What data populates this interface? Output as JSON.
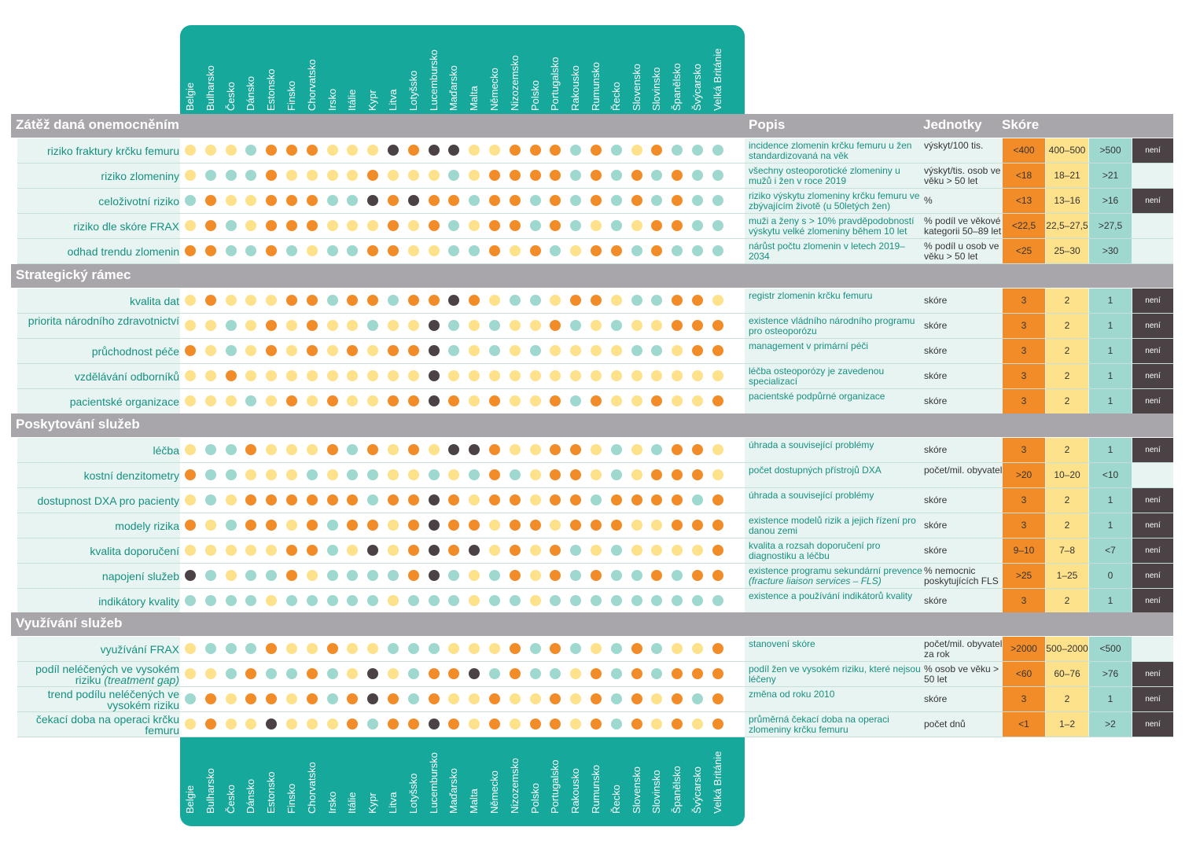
{
  "countries": [
    "Belgie",
    "Bulharsko",
    "Česko",
    "Dánsko",
    "Estonsko",
    "Finsko",
    "Chorvatsko",
    "Irsko",
    "Itálie",
    "Kypr",
    "Litva",
    "Lotyšsko",
    "Lucembursko",
    "Maďarsko",
    "Malta",
    "Německo",
    "Nizozemsko",
    "Polsko",
    "Portugalsko",
    "Rakousko",
    "Rumunsko",
    "Řecko",
    "Slovensko",
    "Slovinsko",
    "Španělsko",
    "Švýcarsko",
    "Velká Británie"
  ],
  "headers": {
    "popis": "Popis",
    "jednotky": "Jednotky",
    "skore": "Skóre"
  },
  "colors": {
    "teal": "#16a89b",
    "light_teal": "#9fd8cf",
    "yellow": "#fde18b",
    "orange": "#f28c28",
    "dark": "#4a4244",
    "section": "#a9a6ab",
    "row_bg": "#e8f4f2",
    "text_teal": "#15907f"
  },
  "chart_data": {
    "type": "table",
    "legend": {
      "0": "orange",
      "1": "yellow",
      "2": "light-teal",
      "3": "dark (není známo)"
    },
    "sections": [
      {
        "title": "Zátěž daná onemocněním",
        "rows": [
          {
            "label": "riziko fraktury krčku femuru",
            "desc": "incidence zlomenin krčku femuru u žen standardizovaná na věk",
            "unit": "výskyt/100 tis.",
            "scores": [
              "<400",
              "400–500",
              ">500"
            ],
            "unknown": "není známo",
            "values": [
              1,
              1,
              1,
              2,
              0,
              0,
              0,
              1,
              1,
              1,
              3,
              0,
              3,
              3,
              1,
              1,
              0,
              0,
              0,
              2,
              0,
              2,
              1,
              0,
              2,
              2,
              2
            ]
          },
          {
            "label": "riziko zlomeniny",
            "desc": "všechny osteoporotické zlomeniny u mužů i žen v roce 2019",
            "unit": "výskyt/tis. osob ve věku > 50 let",
            "scores": [
              "<18",
              "18–21",
              ">21"
            ],
            "unknown": "",
            "values": [
              1,
              2,
              2,
              2,
              0,
              1,
              1,
              1,
              1,
              0,
              1,
              1,
              1,
              2,
              1,
              0,
              0,
              0,
              0,
              2,
              0,
              2,
              0,
              2,
              0,
              2,
              2
            ]
          },
          {
            "label": "celoživotní riziko",
            "desc": "riziko výskytu zlomeniny krčku femuru ve zbývajícím životě (u 50letých žen)",
            "unit": "%",
            "scores": [
              "<13",
              "13–16",
              ">16"
            ],
            "unknown": "není známo",
            "values": [
              2,
              0,
              1,
              1,
              0,
              0,
              0,
              2,
              2,
              3,
              0,
              3,
              0,
              0,
              2,
              0,
              0,
              2,
              0,
              2,
              0,
              2,
              0,
              2,
              0,
              2,
              2
            ]
          },
          {
            "label": "riziko dle skóre FRAX",
            "desc": "muži a ženy s > 10% pravděpodobností výskytu velké zlomeniny během 10 let",
            "unit": "% podíl ve věkové kategorii 50–89 let",
            "scores": [
              "<22,5",
              "22,5–27,5",
              ">27,5"
            ],
            "unknown": "",
            "values": [
              1,
              0,
              2,
              1,
              0,
              0,
              0,
              1,
              1,
              1,
              0,
              1,
              0,
              2,
              1,
              0,
              0,
              2,
              0,
              2,
              1,
              2,
              1,
              0,
              0,
              2,
              2
            ]
          },
          {
            "label": "odhad trendu zlomenin",
            "desc": "nárůst počtu zlomenin v letech 2019–2034",
            "unit": "% podíl u osob ve věku > 50 let",
            "scores": [
              "<25",
              "25–30",
              ">30"
            ],
            "unknown": "",
            "values": [
              0,
              0,
              2,
              2,
              0,
              2,
              1,
              2,
              2,
              0,
              0,
              1,
              1,
              2,
              2,
              0,
              1,
              0,
              2,
              1,
              0,
              0,
              2,
              0,
              2,
              2,
              2
            ]
          }
        ]
      },
      {
        "title": "Strategický rámec",
        "rows": [
          {
            "label": "kvalita dat",
            "desc": "registr zlomenin krčku femuru",
            "unit": "skóre",
            "scores": [
              "3",
              "2",
              "1"
            ],
            "unknown": "není známo",
            "values": [
              1,
              0,
              1,
              1,
              1,
              0,
              0,
              2,
              0,
              0,
              2,
              0,
              0,
              3,
              0,
              1,
              2,
              2,
              1,
              0,
              0,
              1,
              2,
              2,
              0,
              0,
              1
            ]
          },
          {
            "label": "priorita národního zdravotnictví",
            "desc": "existence vládního národního programu pro osteoporózu",
            "unit": "skóre",
            "scores": [
              "3",
              "2",
              "1"
            ],
            "unknown": "není známo",
            "values": [
              1,
              1,
              2,
              1,
              0,
              1,
              0,
              1,
              1,
              2,
              1,
              1,
              3,
              2,
              1,
              2,
              1,
              1,
              0,
              2,
              1,
              2,
              1,
              1,
              0,
              0,
              0
            ]
          },
          {
            "label": "průchodnost péče",
            "desc": "management v primární péči",
            "unit": "skóre",
            "scores": [
              "3",
              "2",
              "1"
            ],
            "unknown": "není známo",
            "values": [
              0,
              1,
              2,
              1,
              0,
              1,
              0,
              1,
              0,
              1,
              0,
              0,
              3,
              2,
              1,
              2,
              1,
              2,
              1,
              1,
              1,
              1,
              2,
              2,
              1,
              0,
              0
            ]
          },
          {
            "label": "vzdělávání odborníků",
            "desc": "léčba osteoporózy je zavedenou specializací",
            "unit": "skóre",
            "scores": [
              "3",
              "2",
              "1"
            ],
            "unknown": "není známo",
            "values": [
              1,
              1,
              0,
              1,
              1,
              1,
              1,
              1,
              1,
              1,
              1,
              1,
              3,
              1,
              1,
              1,
              1,
              1,
              1,
              1,
              1,
              1,
              1,
              1,
              1,
              1,
              1
            ]
          },
          {
            "label": "pacientské organizace",
            "desc": "pacientské podpůrné organizace",
            "unit": "skóre",
            "scores": [
              "3",
              "2",
              "1"
            ],
            "unknown": "není známo",
            "values": [
              1,
              1,
              1,
              2,
              1,
              0,
              1,
              0,
              1,
              1,
              0,
              0,
              3,
              0,
              1,
              0,
              1,
              1,
              0,
              2,
              0,
              1,
              1,
              0,
              1,
              1,
              0
            ]
          }
        ]
      },
      {
        "title": "Poskytování služeb",
        "rows": [
          {
            "label": "léčba",
            "desc": "úhrada a související problémy",
            "unit": "skóre",
            "scores": [
              "3",
              "2",
              "1"
            ],
            "unknown": "není známo",
            "values": [
              1,
              2,
              2,
              0,
              1,
              1,
              1,
              0,
              2,
              0,
              1,
              0,
              1,
              3,
              3,
              0,
              1,
              1,
              0,
              0,
              1,
              2,
              1,
              2,
              0,
              0,
              1
            ]
          },
          {
            "label": "kostní denzitometry",
            "desc": "počet dostupných přístrojů DXA",
            "unit": "počet/mil. obyvatel",
            "scores": [
              ">20",
              "10–20",
              "<10"
            ],
            "unknown": "",
            "values": [
              0,
              2,
              2,
              1,
              1,
              1,
              2,
              1,
              2,
              2,
              1,
              1,
              2,
              1,
              2,
              0,
              2,
              1,
              0,
              0,
              1,
              2,
              1,
              0,
              0,
              0,
              1
            ]
          },
          {
            "label": "dostupnost DXA pro pacienty",
            "desc": "úhrada a související problémy",
            "unit": "skóre",
            "scores": [
              "3",
              "2",
              "1"
            ],
            "unknown": "není známo",
            "values": [
              1,
              2,
              1,
              0,
              0,
              0,
              0,
              0,
              0,
              2,
              0,
              0,
              3,
              0,
              1,
              0,
              0,
              1,
              0,
              0,
              2,
              0,
              0,
              0,
              0,
              2,
              0
            ]
          },
          {
            "label": "modely rizika",
            "desc": "existence modelů rizik a jejich řízení pro danou zemi",
            "unit": "skóre",
            "scores": [
              "3",
              "2",
              "1"
            ],
            "unknown": "není známo",
            "values": [
              0,
              1,
              2,
              0,
              0,
              1,
              0,
              2,
              0,
              0,
              1,
              0,
              3,
              0,
              0,
              1,
              0,
              0,
              1,
              0,
              0,
              0,
              1,
              1,
              0,
              0,
              0
            ]
          },
          {
            "label": "kvalita doporučení",
            "desc": "kvalita a rozsah doporučení pro diagnostiku a léčbu",
            "unit": "skóre",
            "scores": [
              "9–10",
              "7–8",
              "<7"
            ],
            "unknown": "není známo",
            "values": [
              1,
              1,
              1,
              1,
              1,
              0,
              0,
              2,
              1,
              3,
              1,
              0,
              3,
              0,
              3,
              1,
              0,
              1,
              0,
              2,
              1,
              2,
              1,
              1,
              1,
              1,
              0
            ]
          },
          {
            "label": "napojení služeb",
            "desc": "existence programu sekundární prevence",
            "desc_note": "(fracture liaison services – FLS)",
            "unit": "% nemocnic poskytujících FLS",
            "scores": [
              ">25",
              "1–25",
              "0"
            ],
            "unknown": "není známo",
            "values": [
              3,
              2,
              1,
              2,
              2,
              0,
              1,
              2,
              2,
              2,
              2,
              0,
              3,
              2,
              1,
              2,
              0,
              1,
              0,
              2,
              0,
              2,
              2,
              0,
              2,
              0,
              0
            ]
          },
          {
            "label": "indikátory kvality",
            "desc": "existence a používání indikátorů kvality",
            "unit": "skóre",
            "scores": [
              "3",
              "2",
              "1"
            ],
            "unknown": "není známo",
            "values": [
              2,
              2,
              2,
              2,
              1,
              2,
              2,
              2,
              2,
              2,
              1,
              2,
              2,
              2,
              1,
              2,
              2,
              1,
              2,
              2,
              2,
              2,
              2,
              2,
              2,
              2,
              2
            ]
          }
        ]
      },
      {
        "title": "Využívání služeb",
        "rows": [
          {
            "label": "využívání FRAX",
            "desc": "stanovení skóre",
            "unit": "počet/mil. obyvatel za rok",
            "scores": [
              ">2000",
              "500–2000",
              "<500"
            ],
            "unknown": "",
            "values": [
              1,
              2,
              2,
              2,
              0,
              1,
              1,
              0,
              1,
              1,
              2,
              2,
              2,
              1,
              1,
              1,
              0,
              2,
              0,
              2,
              1,
              2,
              0,
              2,
              1,
              1,
              0
            ]
          },
          {
            "label": "podíl neléčených ve vysokém riziku",
            "label_note": "(treatment gap)",
            "desc": "podíl žen ve vysokém riziku, které nejsou léčeny",
            "unit": "% osob ve věku > 50 let",
            "scores": [
              "<60",
              "60–76",
              ">76"
            ],
            "unknown": "není známo",
            "values": [
              1,
              1,
              2,
              0,
              2,
              2,
              0,
              2,
              1,
              3,
              1,
              2,
              0,
              0,
              3,
              2,
              0,
              2,
              2,
              1,
              0,
              2,
              0,
              2,
              0,
              0,
              0
            ]
          },
          {
            "label": "trend podílu neléčených ve vysokém riziku",
            "desc": "změna od roku 2010",
            "unit": "skóre",
            "scores": [
              "3",
              "2",
              "1"
            ],
            "unknown": "není známo",
            "values": [
              2,
              0,
              1,
              0,
              0,
              1,
              0,
              2,
              0,
              3,
              0,
              2,
              0,
              1,
              1,
              0,
              1,
              1,
              0,
              1,
              0,
              2,
              0,
              1,
              0,
              2,
              0
            ]
          },
          {
            "label": "čekací doba na operaci krčku femuru",
            "desc": "průměrná čekací doba na operaci zlomeniny krčku femuru",
            "unit": "počet dnů",
            "scores": [
              "<1",
              "1–2",
              ">2"
            ],
            "unknown": "není známo",
            "values": [
              1,
              0,
              1,
              1,
              3,
              1,
              1,
              1,
              0,
              2,
              0,
              0,
              3,
              0,
              1,
              0,
              1,
              0,
              0,
              1,
              0,
              2,
              0,
              1,
              0,
              1,
              0
            ]
          }
        ]
      }
    ]
  }
}
